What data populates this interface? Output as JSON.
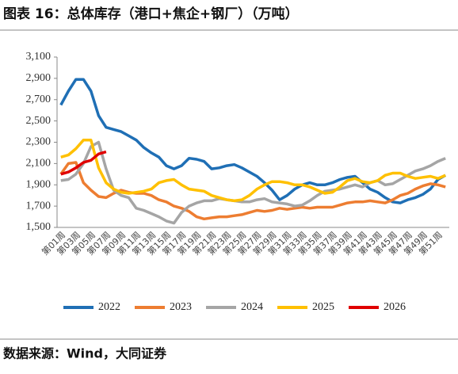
{
  "chart_data": {
    "type": "line",
    "title": "图表 16：总体库存（港口+焦企+钢厂）（万吨）",
    "source": "数据来源：Wind，大同证券",
    "categories": [
      "第01周",
      null,
      "第03周",
      null,
      "第05周",
      null,
      "第07周",
      null,
      "第09周",
      null,
      "第11周",
      null,
      "第13周",
      null,
      "第15周",
      null,
      "第17周",
      null,
      "第19周",
      null,
      "第21周",
      null,
      "第23周",
      null,
      "第25周",
      null,
      "第27周",
      null,
      "第29周",
      null,
      "第31周",
      null,
      "第33周",
      null,
      "第35周",
      null,
      "第37周",
      null,
      "第39周",
      null,
      "第41周",
      null,
      "第43周",
      null,
      "第45周",
      null,
      "第47周",
      null,
      "第49周",
      null,
      "第51周",
      null
    ],
    "ylim": [
      1500,
      3100
    ],
    "yticks": [
      {
        "value": 1500,
        "label": "1,500"
      },
      {
        "value": 1700,
        "label": "1,700"
      },
      {
        "value": 1900,
        "label": "1,900"
      },
      {
        "value": 2100,
        "label": "2,100"
      },
      {
        "value": 2300,
        "label": "2,300"
      },
      {
        "value": 2500,
        "label": "2,500"
      },
      {
        "value": 2700,
        "label": "2,700"
      },
      {
        "value": 2900,
        "label": "2,900"
      },
      {
        "value": 3100,
        "label": "3,100"
      }
    ],
    "grid": false,
    "legend": "bottom",
    "series": [
      {
        "name": "2022",
        "color": "#1f6fb5",
        "values": [
          2650,
          2780,
          2890,
          2890,
          2780,
          2550,
          2440,
          2420,
          2400,
          2360,
          2320,
          2250,
          2200,
          2160,
          2080,
          2050,
          2080,
          2150,
          2140,
          2120,
          2050,
          2060,
          2080,
          2090,
          2060,
          2020,
          1980,
          1920,
          1850,
          1760,
          1800,
          1860,
          1900,
          1920,
          1900,
          1900,
          1920,
          1950,
          1970,
          1980,
          1920,
          1860,
          1830,
          1780,
          1740,
          1730,
          1760,
          1780,
          1810,
          1860,
          1950,
          1990
        ]
      },
      {
        "name": "2023",
        "color": "#ed7d31",
        "values": [
          2000,
          2100,
          2110,
          1920,
          1850,
          1790,
          1780,
          1820,
          1850,
          1830,
          1820,
          1820,
          1800,
          1760,
          1740,
          1700,
          1680,
          1650,
          1600,
          1580,
          1590,
          1600,
          1600,
          1610,
          1620,
          1640,
          1660,
          1650,
          1660,
          1680,
          1670,
          1680,
          1690,
          1680,
          1690,
          1690,
          1690,
          1710,
          1730,
          1740,
          1740,
          1750,
          1740,
          1730,
          1760,
          1800,
          1820,
          1860,
          1890,
          1910,
          1900,
          1880
        ]
      },
      {
        "name": "2024",
        "color": "#a5a5a5",
        "values": [
          1940,
          1950,
          2000,
          2100,
          2260,
          2300,
          2050,
          1850,
          1800,
          1780,
          1680,
          1660,
          1630,
          1600,
          1560,
          1540,
          1640,
          1700,
          1730,
          1750,
          1750,
          1770,
          1760,
          1750,
          1740,
          1740,
          1760,
          1770,
          1740,
          1730,
          1720,
          1700,
          1710,
          1750,
          1800,
          1840,
          1850,
          1860,
          1880,
          1900,
          1880,
          1920,
          1940,
          1900,
          1910,
          1950,
          1990,
          2030,
          2050,
          2080,
          2120,
          2150
        ]
      },
      {
        "name": "2025",
        "color": "#ffc000",
        "values": [
          2160,
          2180,
          2240,
          2320,
          2320,
          2060,
          1920,
          1860,
          1830,
          1820,
          1830,
          1840,
          1860,
          1920,
          1940,
          1950,
          1900,
          1860,
          1850,
          1840,
          1800,
          1780,
          1760,
          1750,
          1760,
          1800,
          1860,
          1900,
          1930,
          1930,
          1920,
          1900,
          1900,
          1880,
          1850,
          1820,
          1830,
          1880,
          1940,
          1960,
          1930,
          1920,
          1940,
          1990,
          2010,
          2010,
          1980,
          1960,
          1970,
          1980,
          1960,
          1990
        ]
      },
      {
        "name": "2026",
        "color": "#e00000",
        "values": [
          2000,
          2020,
          2060,
          2110,
          2130,
          2190,
          2210,
          null,
          null,
          null,
          null,
          null,
          null,
          null,
          null,
          null,
          null,
          null,
          null,
          null,
          null,
          null,
          null,
          null,
          null,
          null,
          null,
          null,
          null,
          null,
          null,
          null,
          null,
          null,
          null,
          null,
          null,
          null,
          null,
          null,
          null,
          null,
          null,
          null,
          null,
          null,
          null,
          null,
          null,
          null,
          null,
          null
        ]
      }
    ]
  }
}
